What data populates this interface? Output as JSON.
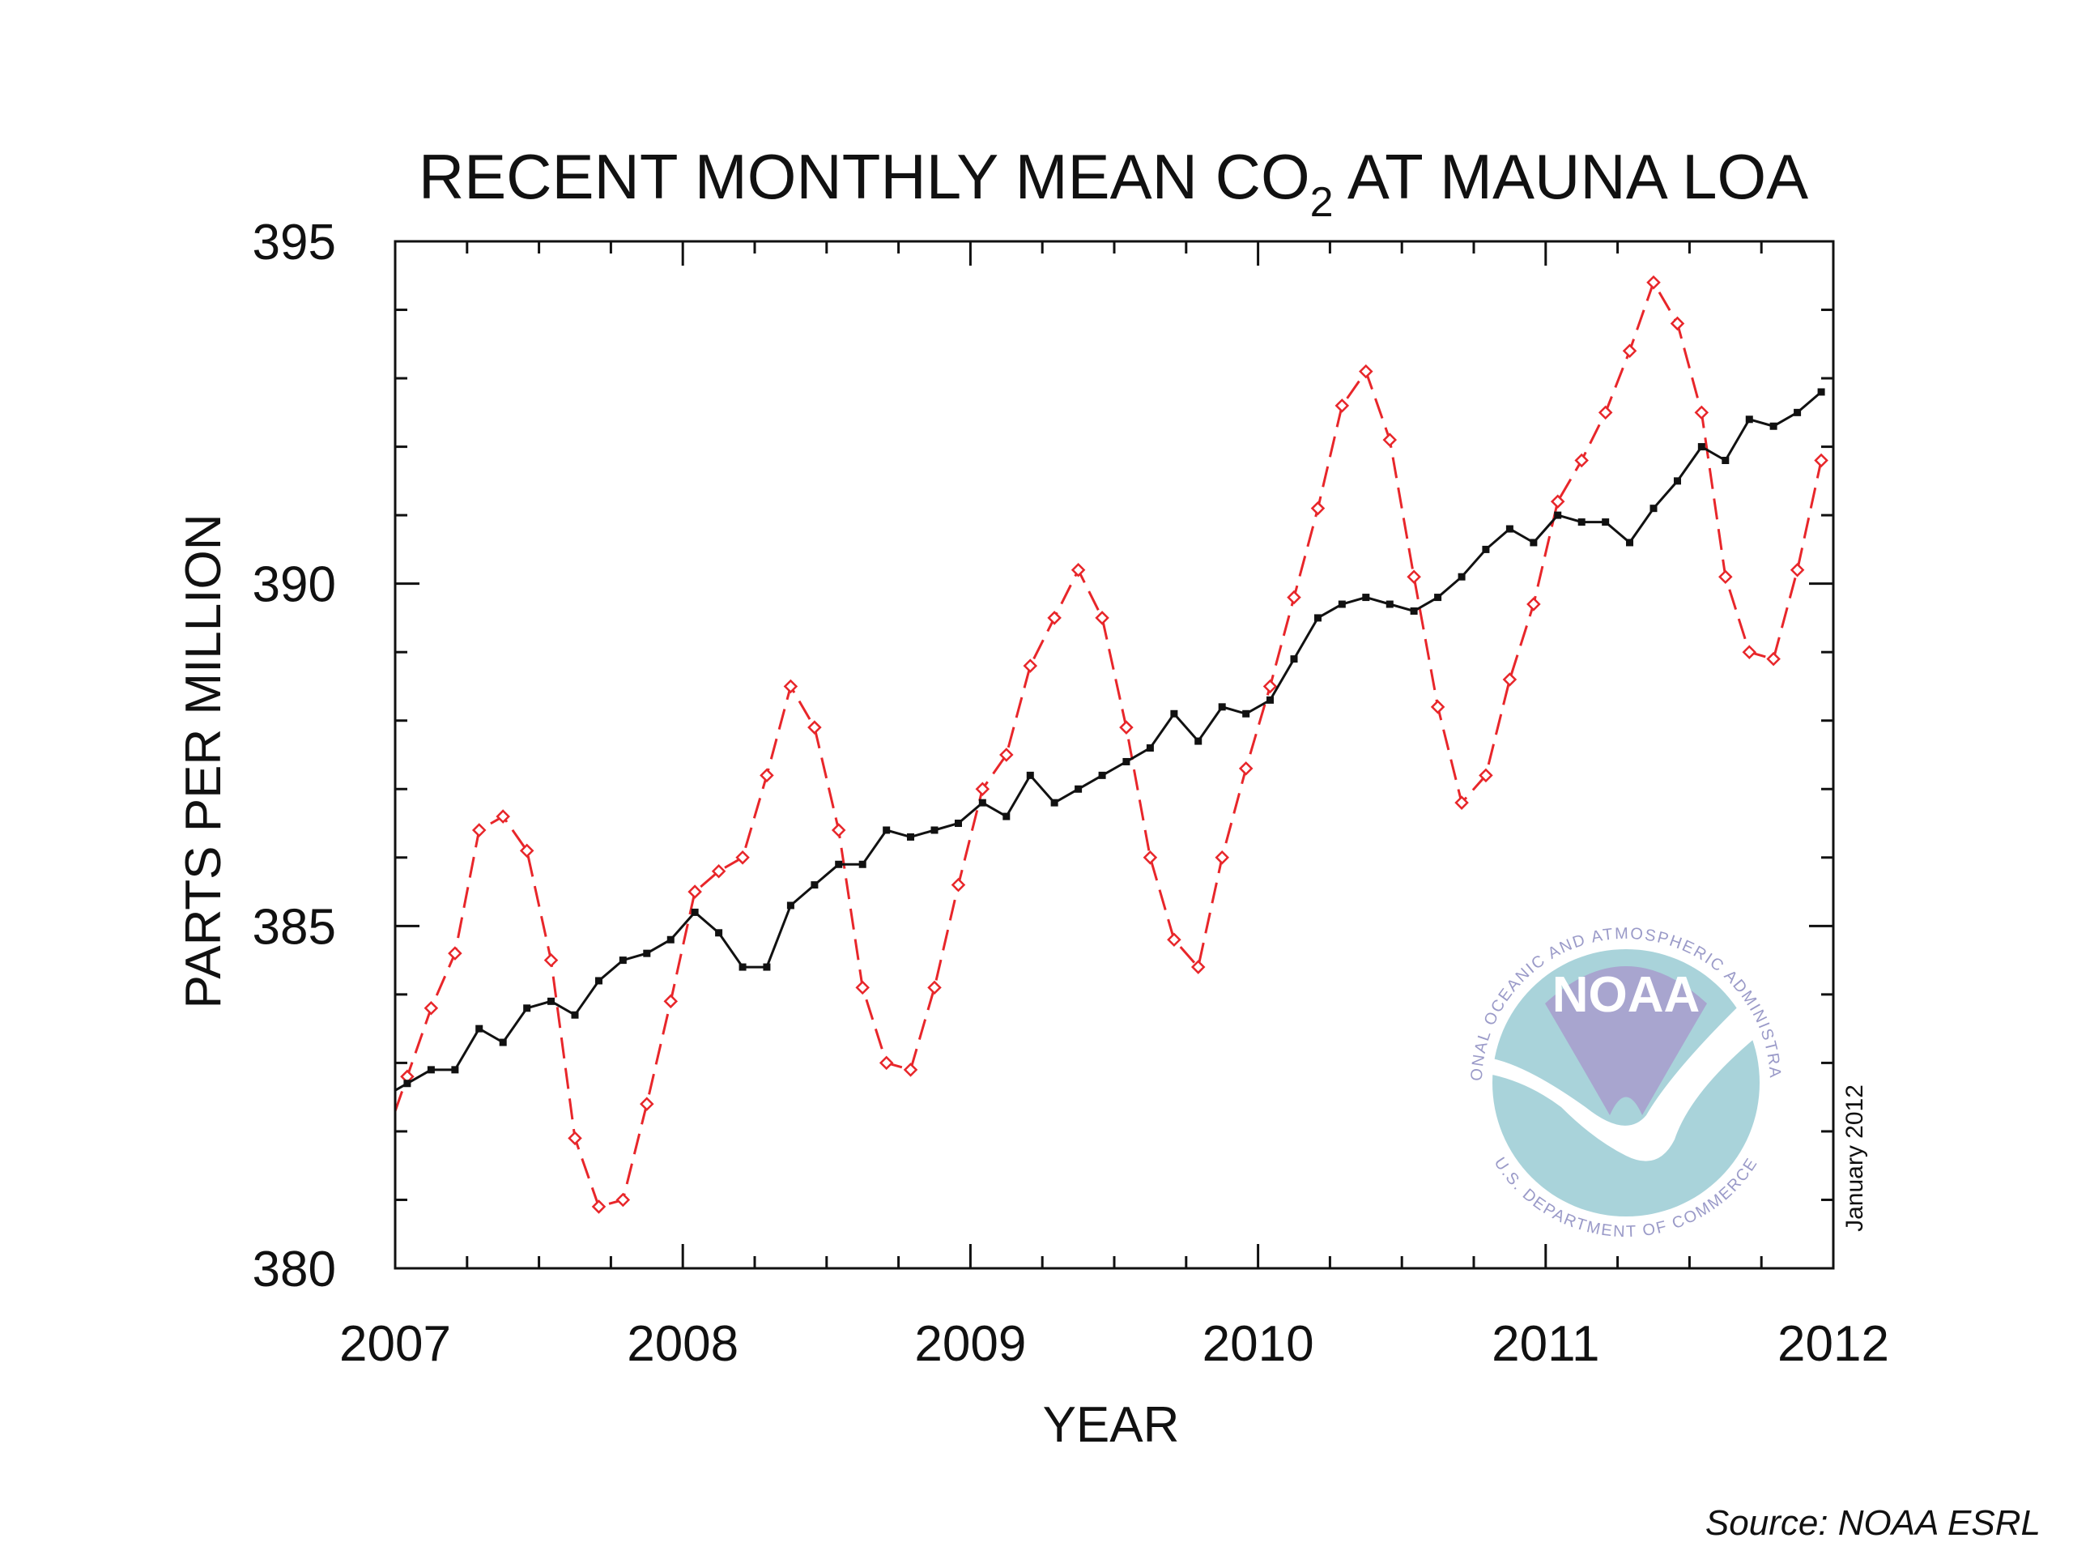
{
  "chart_data": {
    "type": "line",
    "title": {
      "main": "RECENT MONTHLY MEAN CO",
      "subscript": "2",
      "rest": " AT MAUNA LOA"
    },
    "xlabel": "YEAR",
    "ylabel": "PARTS PER MILLION",
    "xlim": [
      2007,
      2012
    ],
    "ylim": [
      380,
      395
    ],
    "x_ticks": [
      "2007",
      "2008",
      "2009",
      "2010",
      "2011",
      "2012"
    ],
    "y_ticks": [
      "380",
      "385",
      "390",
      "395"
    ],
    "grid": false,
    "legend": "none",
    "date_stamp": "January 2012",
    "logo_text": "NOAA",
    "logo_ring_text": "NATIONAL OCEANIC AND ATMOSPHERIC ADMINISTRATION · U.S. DEPARTMENT OF COMMERCE",
    "x": [
      2007.042,
      2007.125,
      2007.208,
      2007.292,
      2007.375,
      2007.458,
      2007.542,
      2007.625,
      2007.708,
      2007.792,
      2007.875,
      2007.958,
      2008.042,
      2008.125,
      2008.208,
      2008.292,
      2008.375,
      2008.458,
      2008.542,
      2008.625,
      2008.708,
      2008.792,
      2008.875,
      2008.958,
      2009.042,
      2009.125,
      2009.208,
      2009.292,
      2009.375,
      2009.458,
      2009.542,
      2009.625,
      2009.708,
      2009.792,
      2009.875,
      2009.958,
      2010.042,
      2010.125,
      2010.208,
      2010.292,
      2010.375,
      2010.458,
      2010.542,
      2010.625,
      2010.708,
      2010.792,
      2010.875,
      2010.958,
      2011.042,
      2011.125,
      2011.208,
      2011.292,
      2011.375,
      2011.458,
      2011.542,
      2011.625,
      2011.708,
      2011.792,
      2011.875,
      2011.958
    ],
    "series": [
      {
        "style": "dashed-diamond",
        "color": "#e8262a",
        "values": [
          382.8,
          383.8,
          384.6,
          386.4,
          386.6,
          386.1,
          384.5,
          381.9,
          380.9,
          381.0,
          382.4,
          383.9,
          385.5,
          385.8,
          386.0,
          387.2,
          388.5,
          387.9,
          386.4,
          384.1,
          383.0,
          382.9,
          384.1,
          385.6,
          387.0,
          387.5,
          388.8,
          389.5,
          390.2,
          389.5,
          387.9,
          386.0,
          384.8,
          384.4,
          386.0,
          387.3,
          388.5,
          389.8,
          391.1,
          392.6,
          393.1,
          392.1,
          390.1,
          388.2,
          386.8,
          387.2,
          388.6,
          389.7,
          391.2,
          391.8,
          392.5,
          393.4,
          394.4,
          393.8,
          392.5,
          390.1,
          389.0,
          388.9,
          390.2,
          391.8
        ]
      },
      {
        "style": "solid-square",
        "color": "#111111",
        "values": [
          382.7,
          382.9,
          382.9,
          383.5,
          383.3,
          383.8,
          383.9,
          383.7,
          384.2,
          384.5,
          384.6,
          384.8,
          385.2,
          384.9,
          384.4,
          384.4,
          385.3,
          385.6,
          385.9,
          385.9,
          386.4,
          386.3,
          386.4,
          386.5,
          386.8,
          386.6,
          387.2,
          386.8,
          387.0,
          387.2,
          387.4,
          387.6,
          388.1,
          387.7,
          388.2,
          388.1,
          388.3,
          388.9,
          389.5,
          389.7,
          389.8,
          389.7,
          389.6,
          389.8,
          390.1,
          390.5,
          390.8,
          390.6,
          391.0,
          390.9,
          390.9,
          390.6,
          391.1,
          391.5,
          392.0,
          391.8,
          392.4,
          392.3,
          392.5,
          392.8
        ]
      }
    ]
  },
  "footer": {
    "source": "Source: NOAA ESRL"
  }
}
